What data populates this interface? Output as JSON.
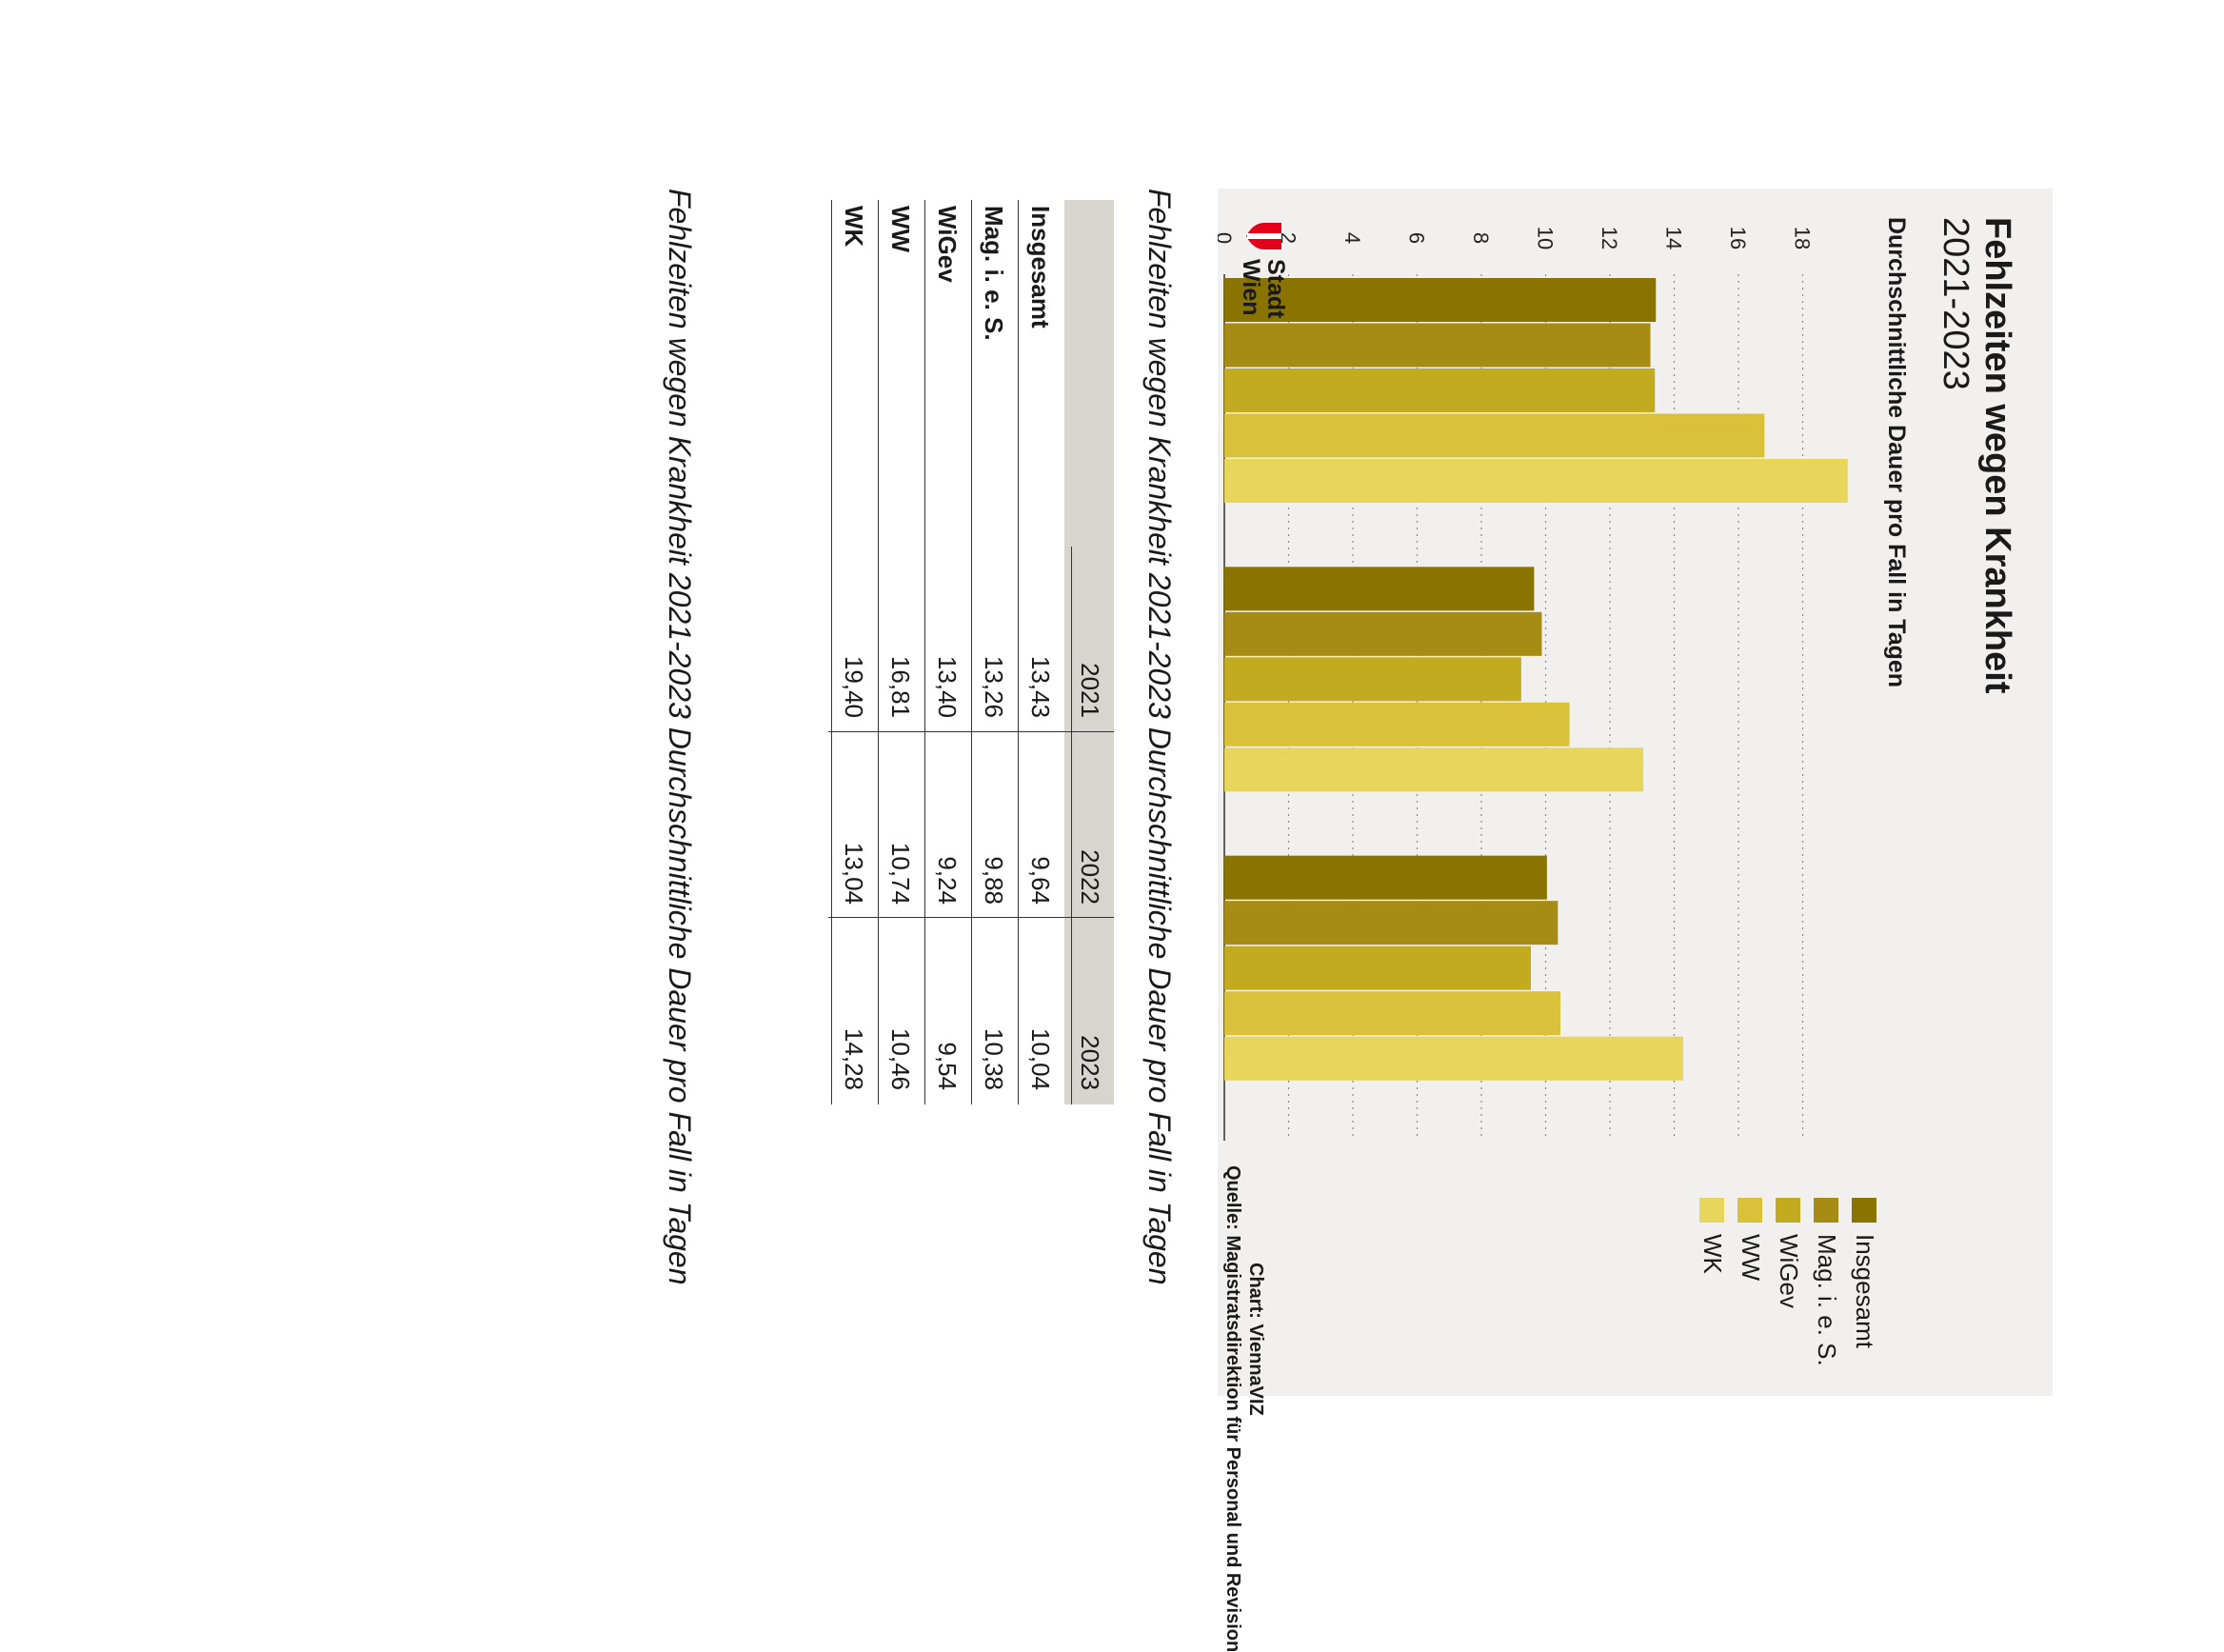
{
  "chart": {
    "title": "Fehlzeiten wegen Krankheit",
    "subtitle": "2021-2023",
    "ylabel": "Durchschnittliche Dauer pro Fall in Tagen",
    "credit": "Chart: ViennaVIZ",
    "source": "Quelle: Magistratsdirektion für Personal und Revision",
    "logo_text_line1": "Stadt",
    "logo_text_line2": "Wien"
  },
  "chart_data": {
    "type": "bar",
    "orientation": "vertical",
    "categories": [
      "2021",
      "2022",
      "2023"
    ],
    "series": [
      {
        "name": "Insgesamt",
        "color": "#8a7400",
        "values": [
          13.43,
          9.64,
          10.04
        ]
      },
      {
        "name": "Mag. i. e. S.",
        "color": "#a68c14",
        "values": [
          13.26,
          9.88,
          10.38
        ]
      },
      {
        "name": "WiGev",
        "color": "#c2ab1e",
        "values": [
          13.4,
          9.24,
          9.54
        ]
      },
      {
        "name": "WW",
        "color": "#d9c23a",
        "values": [
          16.81,
          10.74,
          10.46
        ]
      },
      {
        "name": "WK",
        "color": "#e8d55b",
        "values": [
          19.4,
          13.04,
          14.28
        ]
      }
    ],
    "yticks": [
      "0",
      "2",
      "4",
      "6",
      "8",
      "10",
      "12",
      "14",
      "16",
      "18"
    ],
    "ylim": [
      0,
      20
    ],
    "grid": "dotted horizontal",
    "legend_position": "right"
  },
  "table": {
    "caption": "Fehlzeiten wegen Krankheit 2021-2023 Durchschnittliche Dauer pro Fall in Tagen",
    "columns": [
      "2021",
      "2022",
      "2023"
    ],
    "rows": [
      {
        "label": "Insgesamt",
        "values": [
          "13,43",
          "9,64",
          "10,04"
        ]
      },
      {
        "label": "Mag. i. e. S.",
        "values": [
          "13,26",
          "9,88",
          "10,38"
        ]
      },
      {
        "label": "WiGev",
        "values": [
          "13,40",
          "9,24",
          "9,54"
        ]
      },
      {
        "label": "WW",
        "values": [
          "16,81",
          "10,74",
          "10,46"
        ]
      },
      {
        "label": "WK",
        "values": [
          "19,40",
          "13,04",
          "14,28"
        ]
      }
    ]
  },
  "bottom_caption": "Fehlzeiten wegen Krankheit 2021-2023 Durchschnittliche Dauer pro Fall in Tagen"
}
